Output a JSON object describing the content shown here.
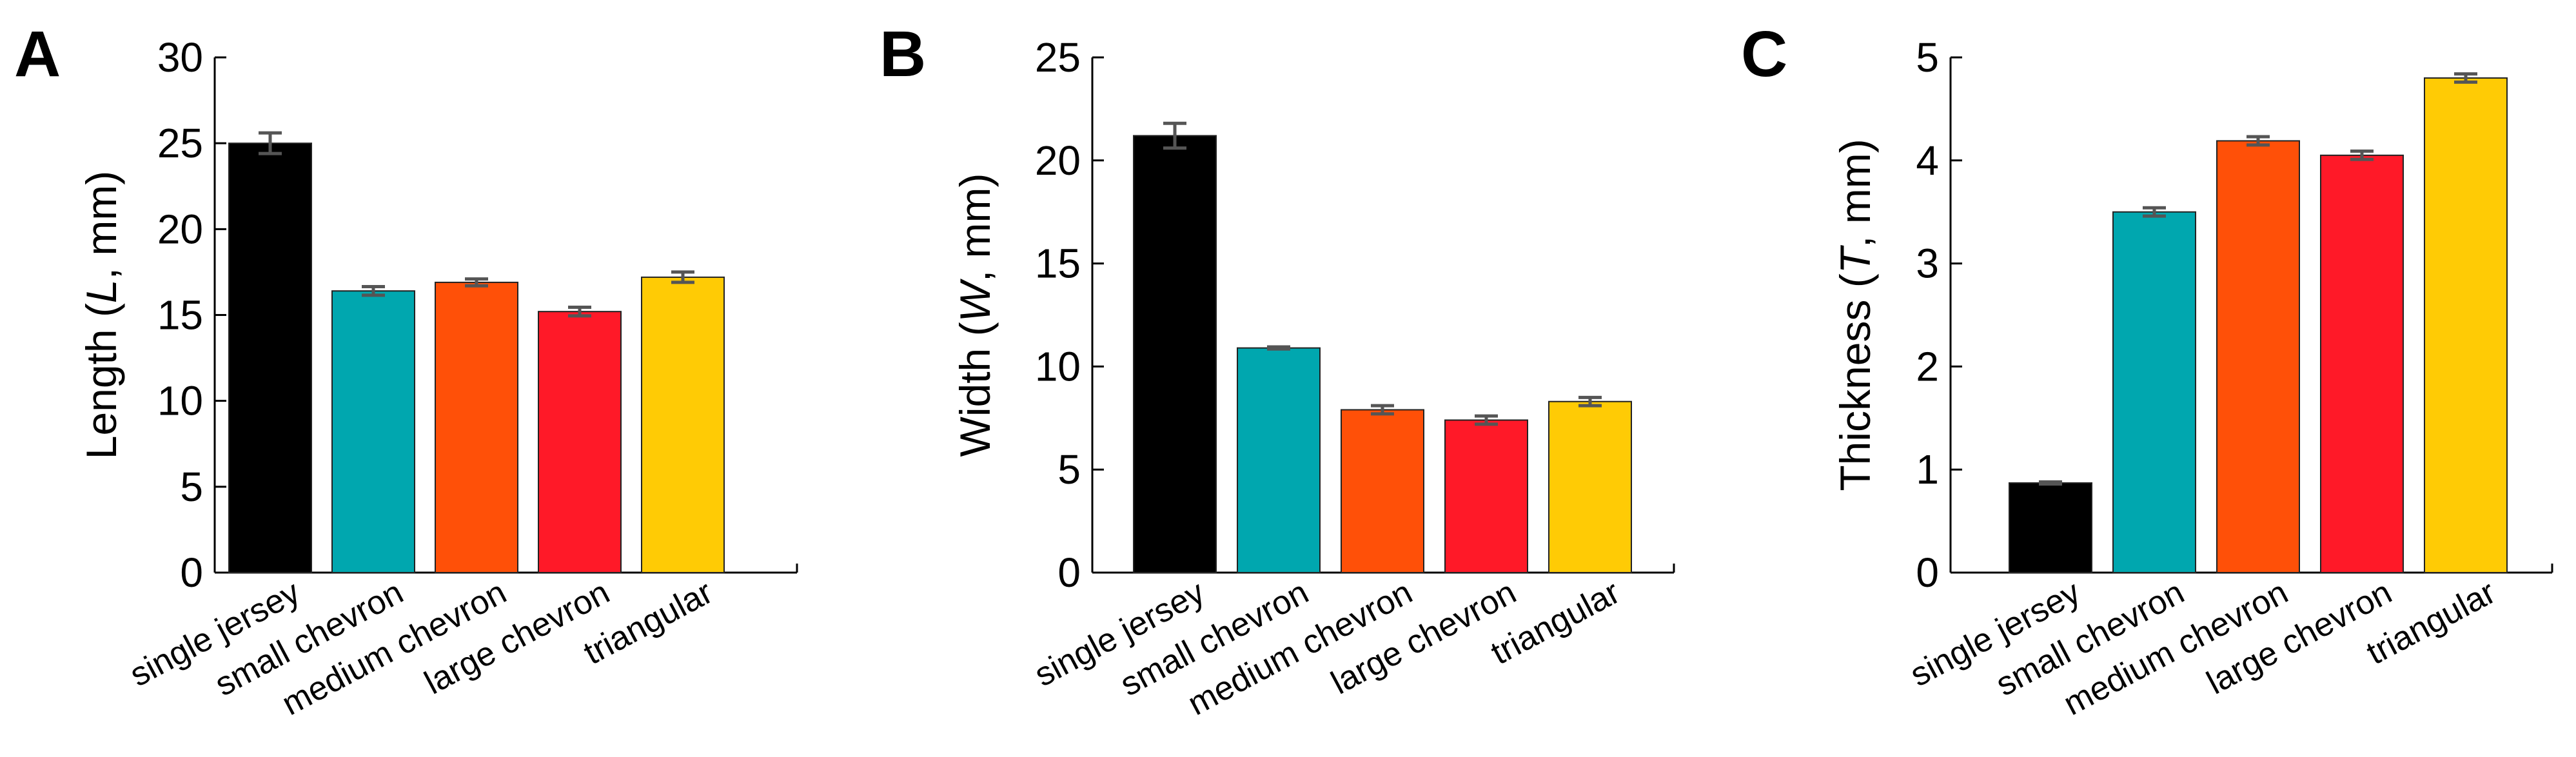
{
  "chart_data": [
    {
      "type": "bar",
      "panel": "A",
      "ylabel_pre": "Length (",
      "ylabel_var": "L",
      "ylabel_post": ", mm)",
      "ylim": [
        0,
        30
      ],
      "yticks": [
        "0",
        "5",
        "10",
        "15",
        "20",
        "25",
        "30"
      ],
      "categories": [
        "single jersey",
        "small chevron",
        "medium chevron",
        "large chevron",
        "triangular"
      ],
      "values": [
        25.0,
        16.4,
        16.9,
        15.2,
        17.2
      ],
      "errors": [
        0.6,
        0.25,
        0.2,
        0.25,
        0.3
      ],
      "colors": [
        "#000000",
        "#00A7AF",
        "#FF5008",
        "#FF1928",
        "#FFCB05"
      ]
    },
    {
      "type": "bar",
      "panel": "B",
      "ylabel_pre": "Width (",
      "ylabel_var": "W",
      "ylabel_post": ", mm)",
      "ylim": [
        0,
        25
      ],
      "yticks": [
        "0",
        "5",
        "10",
        "15",
        "20",
        "25"
      ],
      "categories": [
        "single jersey",
        "small chevron",
        "medium chevron",
        "large chevron",
        "triangular"
      ],
      "values": [
        21.2,
        10.9,
        7.9,
        7.4,
        8.3
      ],
      "errors": [
        0.6,
        0.05,
        0.2,
        0.2,
        0.2
      ],
      "colors": [
        "#000000",
        "#00A7AF",
        "#FF5008",
        "#FF1928",
        "#FFCB05"
      ]
    },
    {
      "type": "bar",
      "panel": "C",
      "ylabel_pre": "Thickness (",
      "ylabel_var": "T",
      "ylabel_post": ", mm)",
      "ylim": [
        0,
        5
      ],
      "yticks": [
        "0",
        "1",
        "2",
        "3",
        "4",
        "5"
      ],
      "categories": [
        "single jersey",
        "small chevron",
        "medium chevron",
        "large chevron",
        "triangular"
      ],
      "values": [
        0.87,
        3.5,
        4.19,
        4.05,
        4.8
      ],
      "errors": [
        0.01,
        0.04,
        0.04,
        0.04,
        0.04
      ],
      "colors": [
        "#000000",
        "#00A7AF",
        "#FF5008",
        "#FF1928",
        "#FFCB05"
      ]
    }
  ]
}
